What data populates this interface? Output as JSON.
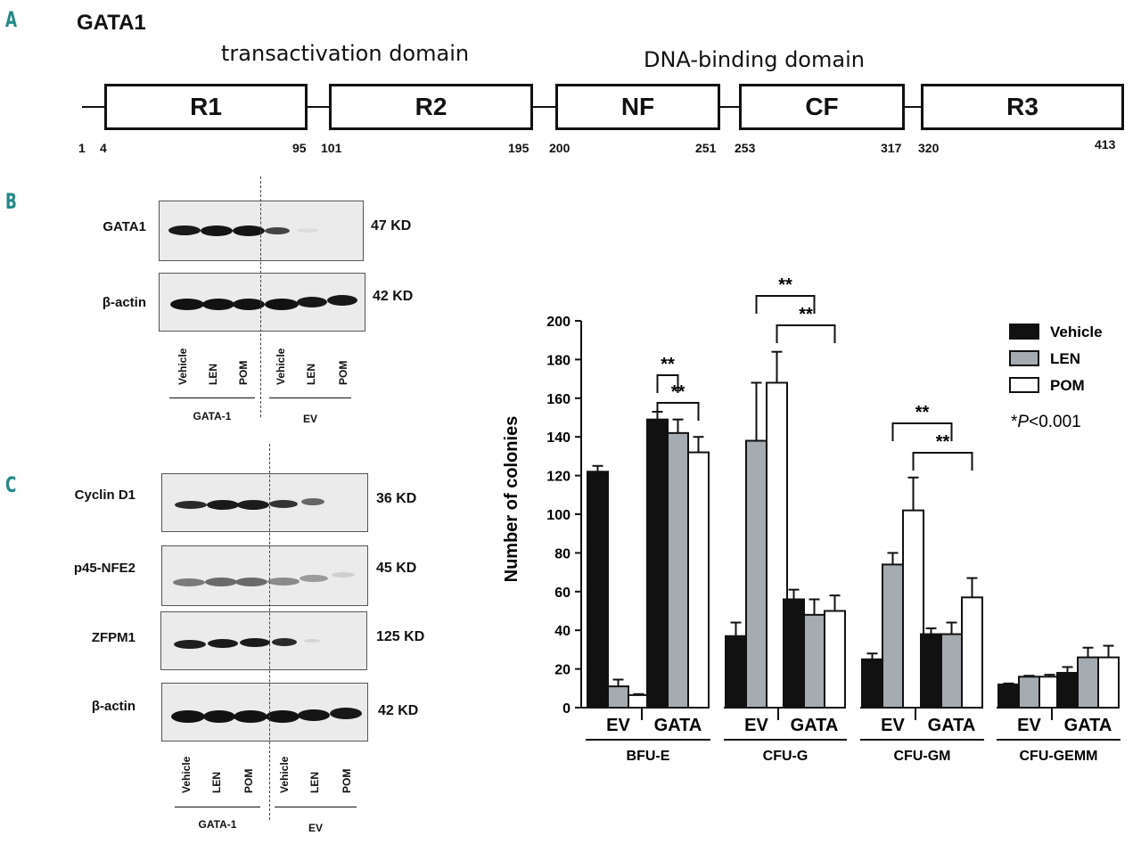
{
  "panels": {
    "a": "A",
    "b": "B",
    "c": "C"
  },
  "panel_a": {
    "title": "GATA1",
    "transactivation_label": "transactivation domain",
    "dna_binding_label": "DNA-binding domain",
    "domains": [
      {
        "name": "R1",
        "start": "4",
        "end": "95"
      },
      {
        "name": "R2",
        "start": "101",
        "end": "195"
      },
      {
        "name": "NF",
        "start": "200",
        "end": "251"
      },
      {
        "name": "CF",
        "start": "253",
        "end": "317"
      },
      {
        "name": "R3",
        "start": "320",
        "end": "413"
      }
    ],
    "first_residue": "1"
  },
  "panel_b": {
    "rows": [
      {
        "label": "GATA1",
        "kd": "47 KD"
      },
      {
        "label": "β-actin",
        "kd": "42 KD"
      }
    ],
    "lanes": [
      "Vehicle",
      "LEN",
      "POM",
      "Vehicle",
      "LEN",
      "POM"
    ],
    "groups": [
      "GATA-1",
      "EV"
    ]
  },
  "panel_c": {
    "rows": [
      {
        "label": "Cyclin D1",
        "kd": "36 KD"
      },
      {
        "label": "p45-NFE2",
        "kd": "45 KD"
      },
      {
        "label": "ZFPM1",
        "kd": "125 KD"
      },
      {
        "label": "β-actin",
        "kd": "42 KD"
      }
    ],
    "lanes": [
      "Vehicle",
      "LEN",
      "POM",
      "Vehicle",
      "LEN",
      "POM"
    ],
    "groups": [
      "GATA-1",
      "EV"
    ]
  },
  "chart_data": {
    "type": "bar",
    "ylabel": "Number of colonies",
    "ylim": [
      0,
      200
    ],
    "yticks": [
      0,
      20,
      40,
      60,
      80,
      100,
      120,
      140,
      160,
      180,
      200
    ],
    "colors": {
      "Vehicle": "#111111",
      "LEN": "#a4acb2",
      "POM": "#ffffff"
    },
    "legend": [
      "Vehicle",
      "LEN",
      "POM"
    ],
    "note_prefix": "*",
    "note_p": "P",
    "note_rest": "<0.001",
    "sig_label": "**",
    "assays": [
      {
        "name": "BFU-E",
        "conditions": [
          {
            "name": "EV",
            "values": [
              122,
              11,
              6.5
            ],
            "errors": [
              3,
              3.5,
              0.5
            ]
          },
          {
            "name": "GATA",
            "values": [
              149,
              142,
              132
            ],
            "errors": [
              4,
              7,
              8
            ]
          }
        ]
      },
      {
        "name": "CFU-G",
        "conditions": [
          {
            "name": "EV",
            "values": [
              37,
              138,
              168
            ],
            "errors": [
              7,
              30,
              16
            ]
          },
          {
            "name": "GATA",
            "values": [
              56,
              48,
              50
            ],
            "errors": [
              5,
              8,
              8
            ]
          }
        ]
      },
      {
        "name": "CFU-GM",
        "conditions": [
          {
            "name": "EV",
            "values": [
              25,
              74,
              102
            ],
            "errors": [
              3,
              6,
              17
            ]
          },
          {
            "name": "GATA",
            "values": [
              38,
              38,
              57
            ],
            "errors": [
              3,
              6,
              10
            ]
          }
        ]
      },
      {
        "name": "CFU-GEMM",
        "conditions": [
          {
            "name": "EV",
            "values": [
              12,
              16,
              16
            ],
            "errors": [
              0.5,
              0.5,
              1
            ]
          },
          {
            "name": "GATA",
            "values": [
              18,
              26,
              26
            ],
            "errors": [
              3,
              5,
              6
            ]
          }
        ]
      }
    ],
    "significance": [
      {
        "assay": 0,
        "from_cond": 1,
        "from_bar": 0,
        "to_cond": 1,
        "to_bar": 1,
        "level": 1
      },
      {
        "assay": 0,
        "from_cond": 1,
        "from_bar": 0,
        "to_cond": 1,
        "to_bar": 2,
        "level": 0
      },
      {
        "assay": 1,
        "from_cond": 0,
        "from_bar": 1,
        "to_cond": 1,
        "to_bar": 1,
        "level": 1
      },
      {
        "assay": 1,
        "from_cond": 0,
        "from_bar": 2,
        "to_cond": 1,
        "to_bar": 2,
        "level": 0
      },
      {
        "assay": 2,
        "from_cond": 0,
        "from_bar": 1,
        "to_cond": 1,
        "to_bar": 1,
        "level": 1
      },
      {
        "assay": 2,
        "from_cond": 0,
        "from_bar": 2,
        "to_cond": 1,
        "to_bar": 2,
        "level": 0
      }
    ]
  }
}
